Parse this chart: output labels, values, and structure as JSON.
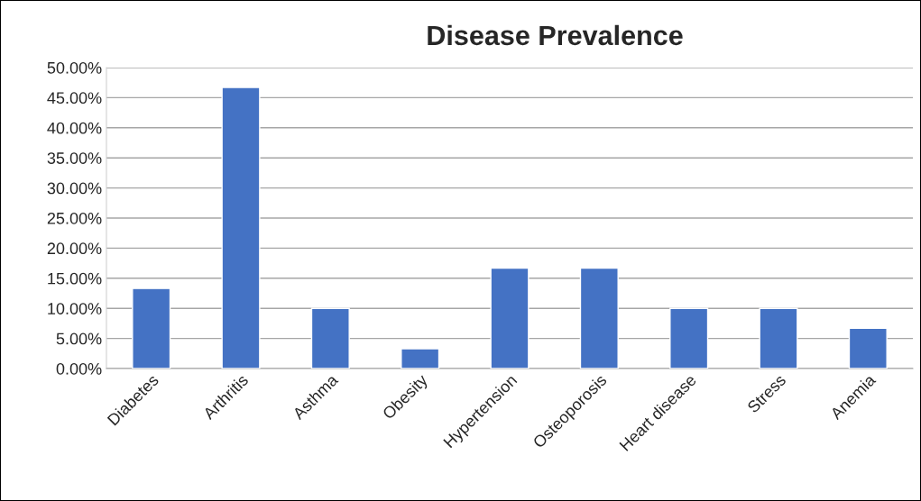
{
  "chart_data": {
    "type": "bar",
    "title": "Disease Prevalence",
    "categories": [
      "Diabetes",
      "Arthritis",
      "Asthma",
      "Obesity",
      "Hypertension",
      "Osteoporosis",
      "Heart disease",
      "Stress",
      "Anemia"
    ],
    "values": [
      13.3,
      46.7,
      10.0,
      3.3,
      16.7,
      16.7,
      10.0,
      10.0,
      6.7
    ],
    "color": "#4472c4",
    "ylim": [
      0,
      50
    ],
    "yticks": [
      {
        "value": 0,
        "label": "0.00%"
      },
      {
        "value": 5,
        "label": "5.00%"
      },
      {
        "value": 10,
        "label": "10.00%"
      },
      {
        "value": 15,
        "label": "15.00%"
      },
      {
        "value": 20,
        "label": "20.00%"
      },
      {
        "value": 25,
        "label": "25.00%"
      },
      {
        "value": 30,
        "label": "30.00%"
      },
      {
        "value": 35,
        "label": "35.00%"
      },
      {
        "value": 40,
        "label": "40.00%"
      },
      {
        "value": 45,
        "label": "45.00%"
      },
      {
        "value": 50,
        "label": "50.00%"
      }
    ],
    "grid": "y"
  }
}
